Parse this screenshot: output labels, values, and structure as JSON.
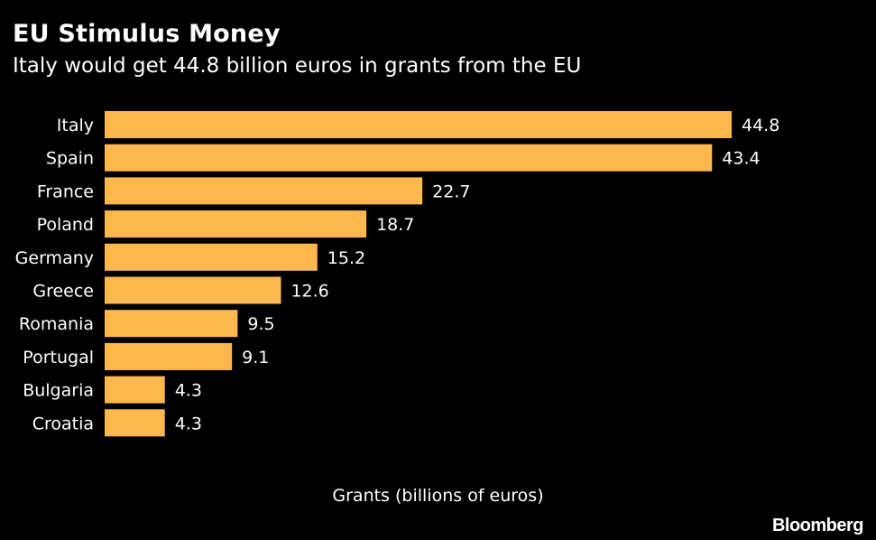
{
  "title": "EU Stimulus Money",
  "subtitle": "Italy would get 44.8 billion euros in grants from the EU",
  "source": "Bloomberg",
  "colors": {
    "background": "#000000",
    "bar": "#FDB84D",
    "text": "#FFFFFF"
  },
  "chart_data": {
    "type": "bar",
    "orientation": "horizontal",
    "title": "EU Stimulus Money",
    "subtitle": "Italy would get 44.8 billion euros in grants from the EU",
    "xlabel": "Grants (billions of euros)",
    "ylabel": "",
    "grid": false,
    "categories": [
      "Italy",
      "Spain",
      "France",
      "Poland",
      "Germany",
      "Greece",
      "Romania",
      "Portugal",
      "Bulgaria",
      "Croatia"
    ],
    "values": [
      44.8,
      43.4,
      22.7,
      18.7,
      15.2,
      12.6,
      9.5,
      9.1,
      4.3,
      4.3
    ],
    "value_labels": [
      "44.8",
      "43.4",
      "22.7",
      "18.7",
      "15.2",
      "12.6",
      "9.5",
      "9.1",
      "4.3",
      "4.3"
    ],
    "xlim": [
      0,
      44.8
    ]
  }
}
